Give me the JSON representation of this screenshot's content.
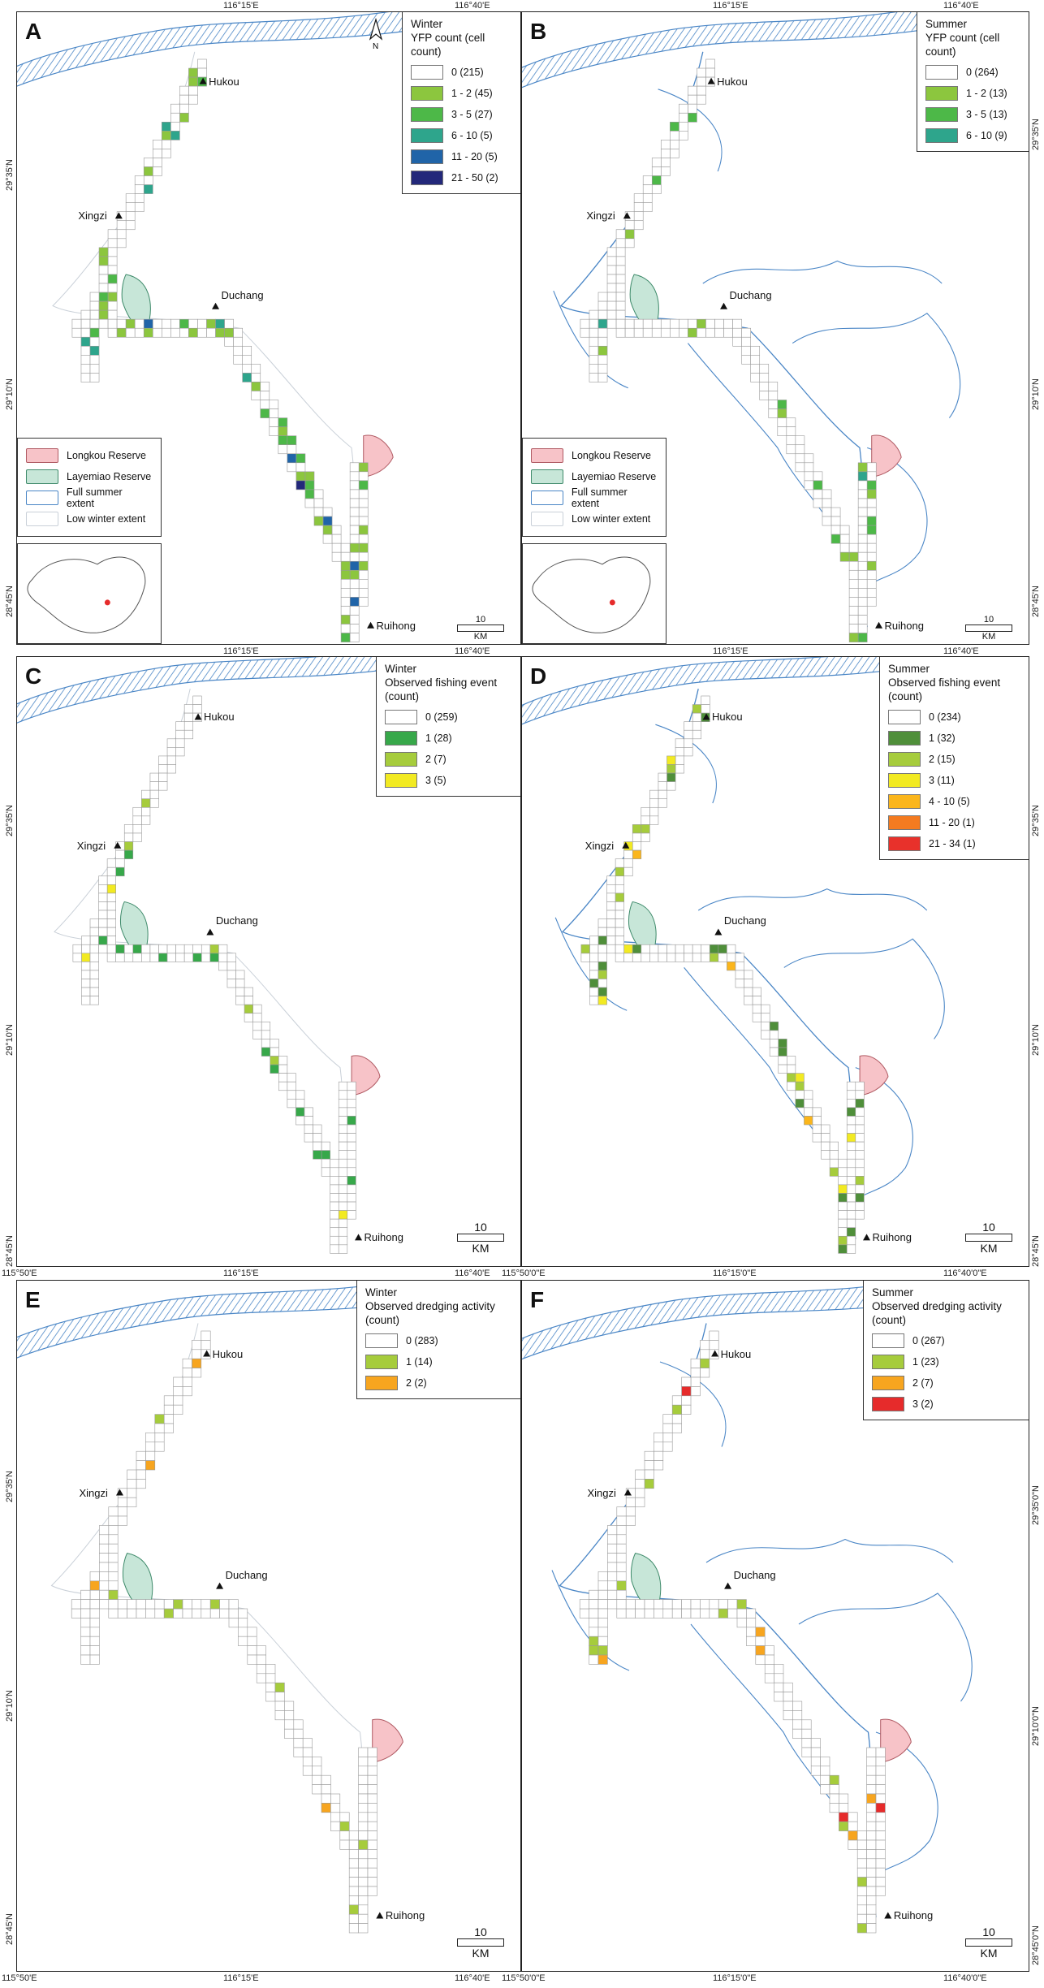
{
  "panels": [
    {
      "id": "A",
      "season": "Winter",
      "legend_title": "YFP count (cell count)",
      "north": "N",
      "classes": [
        {
          "label": "0 (215)",
          "color": "#ffffff"
        },
        {
          "label": "1 - 2 (45)",
          "color": "#8cc63e"
        },
        {
          "label": "3 - 5 (27)",
          "color": "#4db848"
        },
        {
          "label": "6 - 10 (5)",
          "color": "#2ea58c"
        },
        {
          "label": "11 - 20 (5)",
          "color": "#2064a8"
        },
        {
          "label": "21 - 50 (2)",
          "color": "#23287a"
        }
      ]
    },
    {
      "id": "B",
      "season": "Summer",
      "legend_title": "YFP count (cell count)",
      "classes": [
        {
          "label": "0 (264)",
          "color": "#ffffff"
        },
        {
          "label": "1 - 2 (13)",
          "color": "#8cc63e"
        },
        {
          "label": "3 - 5 (13)",
          "color": "#4db848"
        },
        {
          "label": "6 - 10 (9)",
          "color": "#2ea58c"
        }
      ]
    },
    {
      "id": "C",
      "season": "Winter",
      "legend_title": "Observed fishing event (count)",
      "classes": [
        {
          "label": "0 (259)",
          "color": "#ffffff"
        },
        {
          "label": "1 (28)",
          "color": "#37a84a"
        },
        {
          "label": "2 (7)",
          "color": "#a6cc3c"
        },
        {
          "label": "3 (5)",
          "color": "#f2ea22"
        }
      ]
    },
    {
      "id": "D",
      "season": "Summer",
      "legend_title": "Observed fishing event (count)",
      "classes": [
        {
          "label": "0 (234)",
          "color": "#ffffff"
        },
        {
          "label": "1 (32)",
          "color": "#4f8f3a"
        },
        {
          "label": "2 (15)",
          "color": "#a6cc3c"
        },
        {
          "label": "3 (11)",
          "color": "#f2ea22"
        },
        {
          "label": "4 - 10 (5)",
          "color": "#fbb61c"
        },
        {
          "label": "11 - 20 (1)",
          "color": "#f47b20"
        },
        {
          "label": "21 - 34 (1)",
          "color": "#e8312b"
        }
      ]
    },
    {
      "id": "E",
      "season": "Winter",
      "legend_title": "Observed dredging activity (count)",
      "classes": [
        {
          "label": "0 (283)",
          "color": "#ffffff"
        },
        {
          "label": "1 (14)",
          "color": "#a6cc3c"
        },
        {
          "label": "2 (2)",
          "color": "#f7a51f"
        }
      ]
    },
    {
      "id": "F",
      "season": "Summer",
      "legend_title": "Observed dredging activity (count)",
      "classes": [
        {
          "label": "0 (267)",
          "color": "#ffffff"
        },
        {
          "label": "1 (23)",
          "color": "#a6cc3c"
        },
        {
          "label": "2 (7)",
          "color": "#f7a51f"
        },
        {
          "label": "3 (2)",
          "color": "#e62b2b"
        }
      ]
    }
  ],
  "places": {
    "hukou": "Hukou",
    "xingzi": "Xingzi",
    "duchang": "Duchang",
    "ruihong": "Ruihong"
  },
  "reserve_legend": {
    "longkou": "Longkou Reserve",
    "layemiao": "Layemiao Reserve",
    "summer": "Full summer extent",
    "winter": "Low winter extent"
  },
  "colors": {
    "longkou": "#f7c3c8",
    "layemiao": "#c7e6d8",
    "summer_line": "#4a86c6",
    "winter_line": "#c9d0d8",
    "grid": "#9a9a9a"
  },
  "scale": {
    "value": "10",
    "unit": "KM"
  },
  "coords": {
    "lon_116_15": "116°15'E",
    "lon_116_40": "116°40'E",
    "lat_29_35": "29°35'N",
    "lat_29_10": "29°10'N",
    "lat_28_45": "28°45'N",
    "lon_115_50": "115°50'E",
    "lon_115_50_0": "115°50'0\"E",
    "lon_116_15_0": "116°15'0\"E",
    "lon_116_40_0": "116°40'0\"E",
    "lat_29_35_0": "29°35'0\"N",
    "lat_29_10_0": "29°10'0\"N",
    "lat_28_45_0": "28°45'0\"N"
  }
}
